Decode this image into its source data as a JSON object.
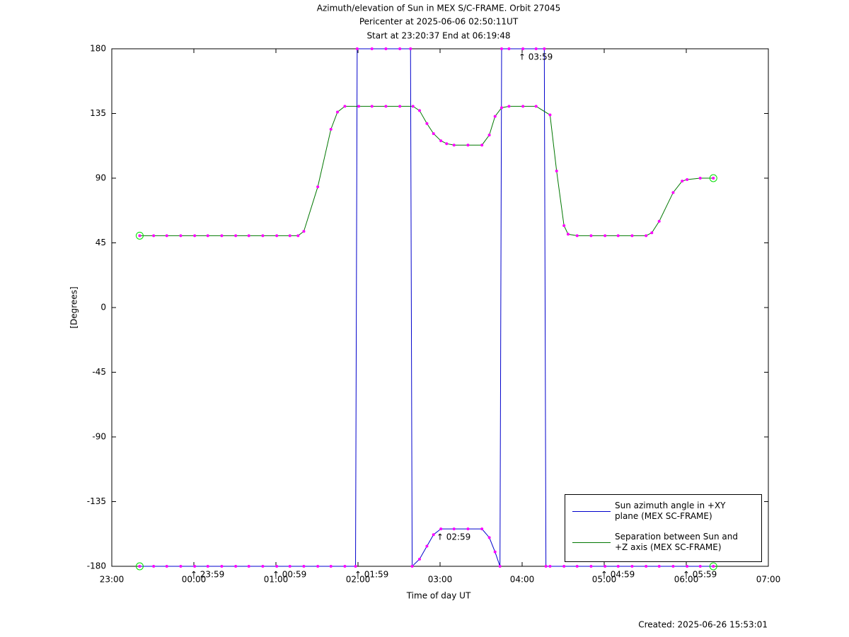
{
  "chart_data": {
    "type": "line",
    "title": "Azimuth/elevation of Sun in MEX S/C-FRAME.  Orbit 27045",
    "subtitle": "Pericenter at 2025-06-06 02:50:11UT",
    "subtitle2": "Start at 23:20:37 End at 06:19:48",
    "x_label": "Time of day UT",
    "y_label": "[Degrees]",
    "footer": "Created: 2025-06-26 15:53:01",
    "xlim": [
      23,
      31
    ],
    "xticks": [
      {
        "value": 23,
        "label": "23:00"
      },
      {
        "value": 24,
        "label": "00:00"
      },
      {
        "value": 25,
        "label": "01:00"
      },
      {
        "value": 26,
        "label": "02:00"
      },
      {
        "value": 27,
        "label": "03:00"
      },
      {
        "value": 28,
        "label": "04:00"
      },
      {
        "value": 29,
        "label": "05:00"
      },
      {
        "value": 30,
        "label": "06:00"
      },
      {
        "value": 31,
        "label": "07:00"
      }
    ],
    "ylim": [
      -180,
      180
    ],
    "yticks": [
      180,
      135,
      90,
      45,
      0,
      -45,
      -90,
      -135,
      -180
    ],
    "grid": false,
    "legend": "lower right",
    "marker_color": "#ff00ff",
    "circle_color": "#00dd00",
    "series": [
      {
        "name": "Sun azimuth angle in +XY plane (MEX SC-FRAME)",
        "color": "#0000cc",
        "x": [
          23.34,
          23.51,
          23.67,
          23.84,
          24.01,
          24.17,
          24.34,
          24.51,
          24.67,
          24.84,
          25.01,
          25.17,
          25.34,
          25.51,
          25.67,
          25.84,
          25.97,
          25.99,
          26.17,
          26.34,
          26.51,
          26.64,
          26.66,
          26.75,
          26.84,
          26.92,
          27.01,
          27.17,
          27.34,
          27.51,
          27.6,
          27.67,
          27.73,
          27.75,
          27.84,
          28.01,
          28.17,
          28.27,
          28.29,
          28.34,
          28.51,
          28.67,
          28.84,
          29.01,
          29.17,
          29.34,
          29.51,
          29.67,
          29.84,
          30.01,
          30.17,
          30.33
        ],
        "values": [
          -180,
          -180,
          -180,
          -180,
          -180,
          -180,
          -180,
          -180,
          -180,
          -180,
          -180,
          -180,
          -180,
          -180,
          -180,
          -180,
          -180,
          180,
          180,
          180,
          180,
          180,
          -180,
          -175,
          -166,
          -158,
          -154,
          -154,
          -154,
          -154,
          -160,
          -170,
          -180,
          180,
          180,
          180,
          180,
          180,
          -180,
          -180,
          -180,
          -180,
          -180,
          -180,
          -180,
          -180,
          -180,
          -180,
          -180,
          -180,
          -180,
          -180
        ]
      },
      {
        "name": "Separation between Sun and +Z axis (MEX SC-FRAME)",
        "color": "#007700",
        "x": [
          23.34,
          23.51,
          23.67,
          23.84,
          24.01,
          24.17,
          24.34,
          24.51,
          24.67,
          24.84,
          25.01,
          25.17,
          25.27,
          25.34,
          25.51,
          25.67,
          25.75,
          25.84,
          26.01,
          26.17,
          26.34,
          26.51,
          26.67,
          26.75,
          26.84,
          26.92,
          27.01,
          27.08,
          27.17,
          27.34,
          27.51,
          27.6,
          27.67,
          27.75,
          27.84,
          28.01,
          28.17,
          28.34,
          28.42,
          28.51,
          28.56,
          28.67,
          28.84,
          29.01,
          29.17,
          29.34,
          29.51,
          29.58,
          29.67,
          29.84,
          29.95,
          30.01,
          30.17,
          30.33
        ],
        "values": [
          50,
          50,
          50,
          50,
          50,
          50,
          50,
          50,
          50,
          50,
          50,
          50,
          50,
          53,
          84,
          124,
          136,
          140,
          140,
          140,
          140,
          140,
          140,
          137,
          128,
          121,
          116,
          114,
          113,
          113,
          113,
          120,
          133,
          139,
          140,
          140,
          140,
          134,
          95,
          57,
          51,
          50,
          50,
          50,
          50,
          50,
          50,
          52,
          60,
          80,
          88,
          89,
          90,
          90
        ]
      }
    ],
    "annotations": [
      {
        "text": "↑ 23:59",
        "x": 23.99,
        "y": -180
      },
      {
        "text": "↑ 00:59",
        "x": 24.99,
        "y": -180
      },
      {
        "text": "↑ 01:59",
        "x": 25.99,
        "y": -180
      },
      {
        "text": "↑ 02:59",
        "x": 26.99,
        "y": -154
      },
      {
        "text": "↑ 03:59",
        "x": 27.99,
        "y": 180
      },
      {
        "text": "↑ 04:59",
        "x": 28.99,
        "y": -180
      },
      {
        "text": "↑ 05:59",
        "x": 29.99,
        "y": -180
      }
    ]
  }
}
